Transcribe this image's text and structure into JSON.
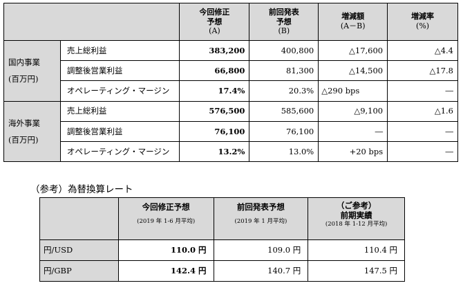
{
  "forecast_table": {
    "headers": [
      {
        "label": "今回修正\n予想",
        "sub": "(A)"
      },
      {
        "label": "前回発表\n予想",
        "sub": "(B)"
      },
      {
        "label": "増減額",
        "sub": "(A－B)"
      },
      {
        "label": "増減率",
        "sub": "(%)"
      }
    ],
    "segments": [
      {
        "name": "国内事業",
        "unit": "(百万円)",
        "rows": [
          {
            "item": "売上総利益",
            "a": "383,200",
            "b": "400,800",
            "diff": "△17,600",
            "rate": "△4.4"
          },
          {
            "item": "調整後営業利益",
            "a": "66,800",
            "b": "81,300",
            "diff": "△14,500",
            "rate": "△17.8"
          },
          {
            "item": "オペレーティング・マージン",
            "a": "17.4%",
            "b": "20.3%",
            "diff": "△290 bps",
            "rate": "―"
          }
        ]
      },
      {
        "name": "海外事業",
        "unit": "(百万円)",
        "rows": [
          {
            "item": "売上総利益",
            "a": "576,500",
            "b": "585,600",
            "diff": "△9,100",
            "rate": "△1.6"
          },
          {
            "item": "調整後営業利益",
            "a": "76,100",
            "b": "76,100",
            "diff": "―",
            "rate": "―"
          },
          {
            "item": "オペレーティング・マージン",
            "a": "13.2%",
            "b": "13.0%",
            "diff": "+20 bps",
            "rate": "―"
          }
        ]
      }
    ]
  },
  "fx_section": {
    "title": "（参考）為替換算レート",
    "headers": [
      {
        "label": "今回修正予想",
        "note": "(2019 年 1-6 月平均)"
      },
      {
        "label": "前回発表予想",
        "note": "(2019 年 1 月平均)"
      },
      {
        "label": "（ご参考）\n前期実績",
        "note": "(2018 年 1-12 月平均)"
      }
    ],
    "rows": [
      {
        "pair": "円/USD",
        "current": "110.0 円",
        "previous": "109.0 円",
        "prior_year": "110.4 円"
      },
      {
        "pair": "円/GBP",
        "current": "142.4 円",
        "previous": "140.7 円",
        "prior_year": "147.5 円"
      }
    ]
  }
}
